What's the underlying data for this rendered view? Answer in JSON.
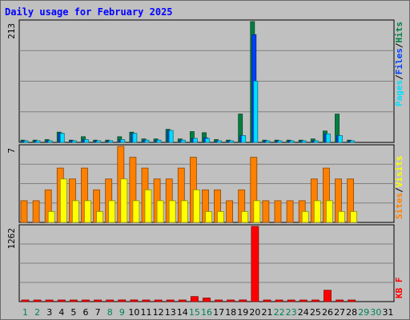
{
  "title": "Daily usage for February 2025",
  "colors": {
    "hits": "#008040",
    "files": "#0040ff",
    "pages": "#00e0ff",
    "visits": "#ffff00",
    "sites": "#ff8000",
    "kbytes": "#ff0000",
    "weekday": "#000000",
    "weekend": "#00805c",
    "background": "#c0c0c0"
  },
  "chart_data": [
    {
      "type": "bar",
      "panel": "top",
      "ymax_label": "213",
      "ylim": [
        0,
        213
      ],
      "legend": [
        "Pages",
        "Files",
        "Hits"
      ],
      "legend_separator": "/",
      "categories": [
        "1",
        "2",
        "3",
        "4",
        "5",
        "6",
        "7",
        "8",
        "9",
        "10",
        "11",
        "12",
        "13",
        "14",
        "15",
        "16",
        "17",
        "18",
        "19",
        "20",
        "21",
        "22",
        "23",
        "24",
        "25",
        "26",
        "27",
        "28",
        "29",
        "30",
        "31"
      ],
      "weekend_days": [
        "1",
        "2",
        "8",
        "9",
        "15",
        "16",
        "22",
        "23",
        "29",
        "30"
      ],
      "series": [
        {
          "name": "Hits",
          "values": [
            4,
            4,
            5,
            18,
            4,
            10,
            4,
            4,
            10,
            18,
            6,
            6,
            23,
            6,
            19,
            17,
            5,
            4,
            50,
            213,
            4,
            4,
            4,
            4,
            6,
            20,
            50,
            4,
            0,
            0,
            0
          ]
        },
        {
          "name": "Files",
          "values": [
            2,
            3,
            3,
            16,
            3,
            5,
            3,
            3,
            5,
            16,
            4,
            4,
            21,
            4,
            7,
            8,
            3,
            2,
            12,
            190,
            2,
            2,
            2,
            2,
            3,
            15,
            12,
            2,
            0,
            0,
            0
          ]
        },
        {
          "name": "Pages",
          "values": [
            2,
            3,
            3,
            16,
            3,
            5,
            3,
            3,
            5,
            16,
            4,
            4,
            21,
            4,
            7,
            7,
            3,
            2,
            12,
            108,
            2,
            2,
            2,
            2,
            3,
            15,
            12,
            2,
            0,
            0,
            0
          ]
        }
      ]
    },
    {
      "type": "bar",
      "panel": "middle",
      "ymax_label": "7",
      "ylim": [
        0,
        7
      ],
      "legend": [
        "Sites",
        "Visits"
      ],
      "legend_separator": "/",
      "categories": [
        "1",
        "2",
        "3",
        "4",
        "5",
        "6",
        "7",
        "8",
        "9",
        "10",
        "11",
        "12",
        "13",
        "14",
        "15",
        "16",
        "17",
        "18",
        "19",
        "20",
        "21",
        "22",
        "23",
        "24",
        "25",
        "26",
        "27",
        "28",
        "29",
        "30",
        "31"
      ],
      "series": [
        {
          "name": "Sites",
          "values": [
            2,
            2,
            3,
            5,
            4,
            5,
            3,
            4,
            7,
            6,
            5,
            4,
            4,
            5,
            6,
            3,
            3,
            2,
            3,
            6,
            2,
            2,
            2,
            2,
            4,
            5,
            4,
            4,
            0,
            0,
            0
          ]
        },
        {
          "name": "Visits",
          "values": [
            0,
            0,
            1,
            4,
            2,
            2,
            1,
            2,
            4,
            2,
            3,
            2,
            2,
            2,
            3,
            1,
            1,
            0,
            1,
            2,
            0,
            0,
            0,
            1,
            2,
            2,
            1,
            1,
            0,
            0,
            0
          ]
        }
      ]
    },
    {
      "type": "bar",
      "panel": "bottom",
      "ymax_label": "1262",
      "ylim": [
        0,
        1262
      ],
      "legend": [
        "KB F"
      ],
      "categories": [
        "1",
        "2",
        "3",
        "4",
        "5",
        "6",
        "7",
        "8",
        "9",
        "10",
        "11",
        "12",
        "13",
        "14",
        "15",
        "16",
        "17",
        "18",
        "19",
        "20",
        "21",
        "22",
        "23",
        "24",
        "25",
        "26",
        "27",
        "28",
        "29",
        "30",
        "31"
      ],
      "series": [
        {
          "name": "KB F",
          "values": [
            12,
            12,
            12,
            12,
            15,
            20,
            20,
            18,
            28,
            28,
            12,
            12,
            20,
            12,
            85,
            60,
            12,
            18,
            28,
            1262,
            10,
            10,
            10,
            10,
            10,
            190,
            22,
            12,
            0,
            0,
            0
          ]
        }
      ]
    }
  ]
}
